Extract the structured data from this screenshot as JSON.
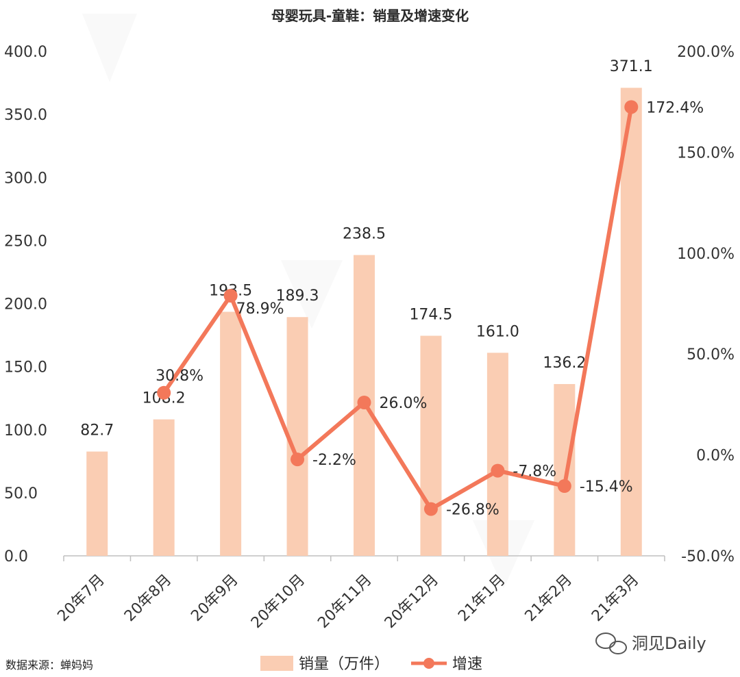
{
  "chart_data": {
    "type": "bar",
    "title": "母婴玩具-童鞋：销量及增速变化",
    "categories": [
      "20年7月",
      "20年8月",
      "20年9月",
      "20年10月",
      "20年11月",
      "20年12月",
      "21年1月",
      "21年2月",
      "21年3月"
    ],
    "series": [
      {
        "name": "销量（万件）",
        "type": "bar",
        "axis": "left",
        "values": [
          82.7,
          108.2,
          193.5,
          189.3,
          238.5,
          174.5,
          161.0,
          136.2,
          371.1
        ],
        "labels": [
          "82.7",
          "108.2",
          "193.5",
          "189.3",
          "238.5",
          "174.5",
          "161.0",
          "136.2",
          "371.1"
        ],
        "color": "#FACDB3"
      },
      {
        "name": "增速",
        "type": "line",
        "axis": "right",
        "values": [
          null,
          30.8,
          78.9,
          -2.2,
          26.0,
          -26.8,
          -7.8,
          -15.4,
          172.4
        ],
        "labels": [
          "",
          "30.8%",
          "78.9%",
          "-2.2%",
          "26.0%",
          "-26.8%",
          "-7.8%",
          "-15.4%",
          "172.4%"
        ],
        "color": "#F3785A"
      }
    ],
    "y_left": {
      "ylim": [
        0,
        400
      ],
      "ticks": [
        "0.0",
        "50.0",
        "100.0",
        "150.0",
        "200.0",
        "250.0",
        "300.0",
        "350.0",
        "400.0"
      ]
    },
    "y_right": {
      "ylim": [
        -50,
        200
      ],
      "ticks": [
        "-50.0%",
        "0.0%",
        "50.0%",
        "100.0%",
        "150.0%",
        "200.0%"
      ]
    },
    "legend": {
      "position": "bottom",
      "items": [
        "销量（万件）",
        "增速"
      ]
    },
    "grid": false
  },
  "source": "数据来源：蝉妈妈",
  "brand": "洞见Daily",
  "watermark": "蝉妈妈"
}
